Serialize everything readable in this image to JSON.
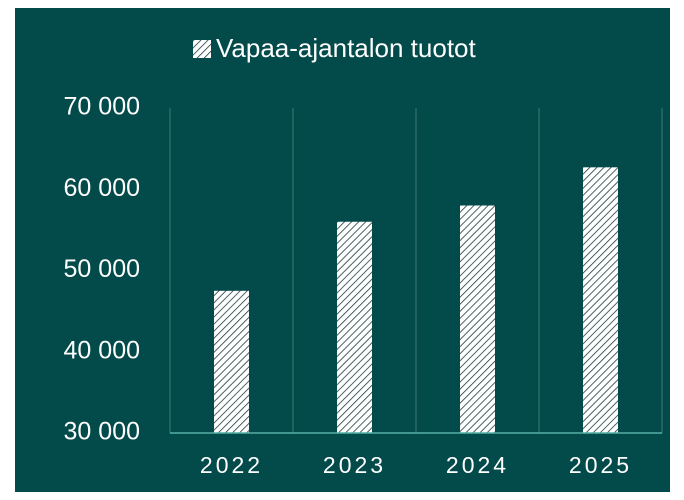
{
  "chart_data": {
    "type": "bar",
    "legend": "Vapaa-ajantalon tuotot",
    "categories": [
      "2022",
      "2023",
      "2024",
      "2025"
    ],
    "values": [
      47500,
      56000,
      58000,
      62700
    ],
    "color": "#ffffff",
    "ylim": [
      30000,
      70000
    ],
    "yticks": [
      {
        "value": 30000,
        "label": "30 000"
      },
      {
        "value": 40000,
        "label": "40 000"
      },
      {
        "value": 50000,
        "label": "50 000"
      },
      {
        "value": 60000,
        "label": "60 000"
      },
      {
        "value": 70000,
        "label": "70 000"
      }
    ],
    "grid": true,
    "legend_position": "top"
  }
}
